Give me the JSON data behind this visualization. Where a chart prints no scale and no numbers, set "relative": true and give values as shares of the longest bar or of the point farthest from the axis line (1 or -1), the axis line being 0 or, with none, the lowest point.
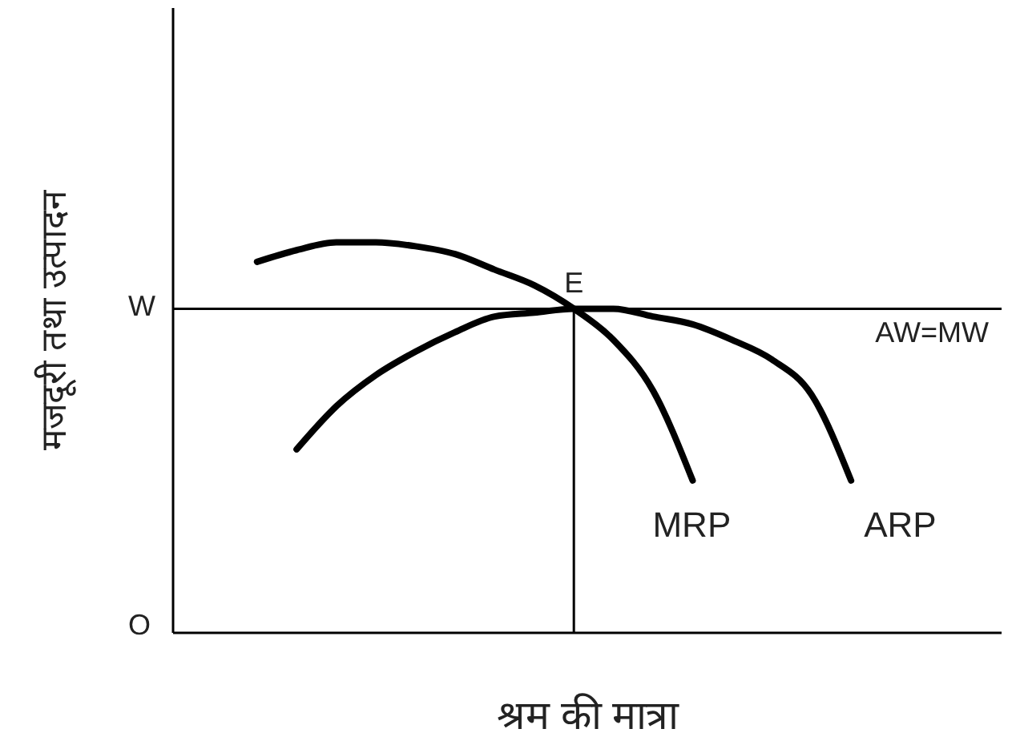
{
  "chart_data": {
    "type": "line",
    "relative": true,
    "xlabel": "श्रम की मात्रा",
    "ylabel": "मजदूरी तथा उत्पादन",
    "categories": [
      null,
      null,
      null,
      null,
      null,
      null,
      null,
      null,
      null,
      null,
      null,
      null,
      null,
      null,
      null,
      null,
      null,
      null,
      null,
      null,
      null
    ],
    "series": [
      {
        "name": "MRP",
        "color": "#000000",
        "values": [
          null,
          null,
          0.95,
          0.98,
          1.0,
          1.0,
          0.99,
          0.97,
          0.93,
          0.89,
          0.83,
          0.75,
          0.62,
          0.39,
          null,
          null,
          null,
          null,
          null,
          null,
          null
        ]
      },
      {
        "name": "ARP",
        "color": "#000000",
        "values": [
          null,
          null,
          null,
          0.47,
          0.58,
          0.66,
          0.72,
          0.77,
          0.81,
          0.82,
          0.83,
          0.83,
          0.81,
          0.79,
          0.75,
          0.7,
          0.61,
          0.39,
          null,
          null,
          null
        ]
      }
    ],
    "ref_lines": [
      {
        "axis": "y",
        "value": 0.83,
        "label": "AW=MW",
        "color": "#000000"
      }
    ],
    "annotations": [
      "O",
      "W",
      {
        "text": "E",
        "y": 0.83
      }
    ],
    "grid": false,
    "legend": false,
    "marker": "none",
    "line_style": "solid"
  }
}
